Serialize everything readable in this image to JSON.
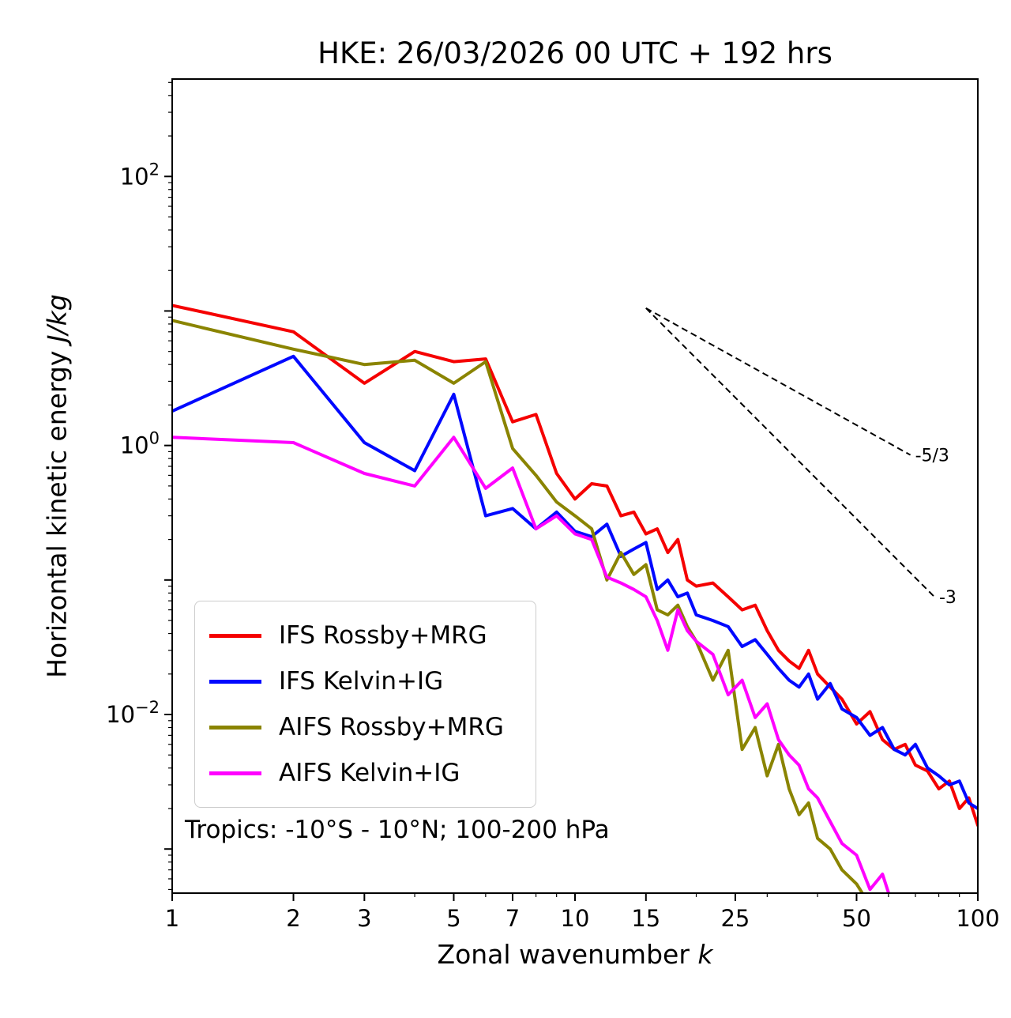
{
  "title": "HKE: 26/03/2026 00 UTC + 192 hrs",
  "annotation": "Tropics: -10°S - 10°N; 100-200 hPa",
  "chart_data": {
    "type": "line",
    "xscale": "log",
    "yscale": "log",
    "grid": false,
    "legend_position": "lower left",
    "xlabel": {
      "text": "Zonal wavenumber ",
      "italic": "k"
    },
    "ylabel": {
      "text": "Horizontal kinetic energy ",
      "italic": "J/kg"
    },
    "xlim": [
      1,
      100
    ],
    "ylim": [
      0.00047,
      530
    ],
    "xticks": [
      1,
      2,
      3,
      5,
      7,
      10,
      15,
      25,
      50,
      100
    ],
    "ytick_labels": [
      {
        "value": 100,
        "base": "10",
        "exp": "2"
      },
      {
        "value": 1,
        "base": "10",
        "exp": "0"
      },
      {
        "value": 0.01,
        "base": "10",
        "exp": "−2"
      }
    ],
    "guides": [
      {
        "label": "-5/3",
        "x": [
          15,
          68
        ],
        "y": [
          10.5,
          0.85
        ]
      },
      {
        "label": "-3",
        "x": [
          15,
          78
        ],
        "y": [
          10.5,
          0.075
        ]
      }
    ],
    "series": [
      {
        "label": "IFS Rossby+MRG",
        "color": "#f50000",
        "x": [
          1,
          2,
          3,
          4,
          5,
          6,
          7,
          8,
          9,
          10,
          11,
          12,
          13,
          14,
          15,
          16,
          17,
          18,
          19,
          20,
          22,
          24,
          26,
          28,
          30,
          32,
          34,
          36,
          38,
          40,
          43,
          46,
          50,
          54,
          58,
          62,
          66,
          70,
          75,
          80,
          85,
          90,
          95,
          100
        ],
        "y": [
          11,
          7,
          2.9,
          5.0,
          4.2,
          4.4,
          1.5,
          1.7,
          0.62,
          0.4,
          0.52,
          0.5,
          0.3,
          0.32,
          0.22,
          0.24,
          0.16,
          0.2,
          0.1,
          0.09,
          0.095,
          0.075,
          0.06,
          0.065,
          0.042,
          0.03,
          0.025,
          0.022,
          0.03,
          0.02,
          0.016,
          0.013,
          0.0085,
          0.0105,
          0.0065,
          0.0055,
          0.006,
          0.0042,
          0.0038,
          0.0028,
          0.0032,
          0.002,
          0.0024,
          0.0015
        ]
      },
      {
        "label": "IFS Kelvin+IG",
        "color": "#0008ff",
        "x": [
          1,
          2,
          3,
          4,
          5,
          6,
          7,
          8,
          9,
          10,
          11,
          12,
          13,
          14,
          15,
          16,
          17,
          18,
          19,
          20,
          22,
          24,
          26,
          28,
          30,
          32,
          34,
          36,
          38,
          40,
          43,
          46,
          50,
          54,
          58,
          62,
          66,
          70,
          75,
          80,
          85,
          90,
          95,
          100
        ],
        "y": [
          1.8,
          4.6,
          1.05,
          0.65,
          2.4,
          0.3,
          0.34,
          0.24,
          0.32,
          0.23,
          0.21,
          0.26,
          0.15,
          0.17,
          0.19,
          0.085,
          0.1,
          0.075,
          0.08,
          0.055,
          0.05,
          0.045,
          0.032,
          0.036,
          0.028,
          0.022,
          0.018,
          0.016,
          0.02,
          0.013,
          0.017,
          0.011,
          0.0095,
          0.007,
          0.008,
          0.0055,
          0.005,
          0.006,
          0.004,
          0.0035,
          0.003,
          0.0032,
          0.0022,
          0.002
        ]
      },
      {
        "label": "AIFS Rossby+MRG",
        "color": "#8a8400",
        "x": [
          1,
          2,
          3,
          4,
          5,
          6,
          7,
          8,
          9,
          10,
          11,
          12,
          13,
          14,
          15,
          16,
          17,
          18,
          19,
          20,
          22,
          24,
          26,
          28,
          30,
          32,
          34,
          36,
          38,
          40,
          43,
          46,
          50,
          54,
          58
        ],
        "y": [
          8.5,
          5.2,
          4.0,
          4.3,
          2.9,
          4.2,
          0.95,
          0.6,
          0.38,
          0.3,
          0.24,
          0.1,
          0.16,
          0.11,
          0.13,
          0.06,
          0.055,
          0.065,
          0.045,
          0.035,
          0.018,
          0.03,
          0.0055,
          0.008,
          0.0035,
          0.006,
          0.0028,
          0.0018,
          0.0022,
          0.0012,
          0.001,
          0.0007,
          0.00055,
          0.00038,
          0.0003
        ]
      },
      {
        "label": "AIFS Kelvin+IG",
        "color": "#ff00ff",
        "x": [
          1,
          2,
          3,
          4,
          5,
          6,
          7,
          8,
          9,
          10,
          11,
          12,
          13,
          14,
          15,
          16,
          17,
          18,
          19,
          20,
          22,
          24,
          26,
          28,
          30,
          32,
          34,
          36,
          38,
          40,
          43,
          46,
          50,
          54,
          58,
          62,
          64
        ],
        "y": [
          1.15,
          1.05,
          0.62,
          0.5,
          1.15,
          0.48,
          0.68,
          0.24,
          0.3,
          0.22,
          0.2,
          0.105,
          0.095,
          0.085,
          0.075,
          0.05,
          0.03,
          0.06,
          0.042,
          0.035,
          0.028,
          0.014,
          0.018,
          0.0095,
          0.012,
          0.0065,
          0.005,
          0.0042,
          0.0028,
          0.0024,
          0.0016,
          0.0011,
          0.0009,
          0.0005,
          0.00065,
          0.00035,
          0.00028
        ]
      }
    ]
  }
}
